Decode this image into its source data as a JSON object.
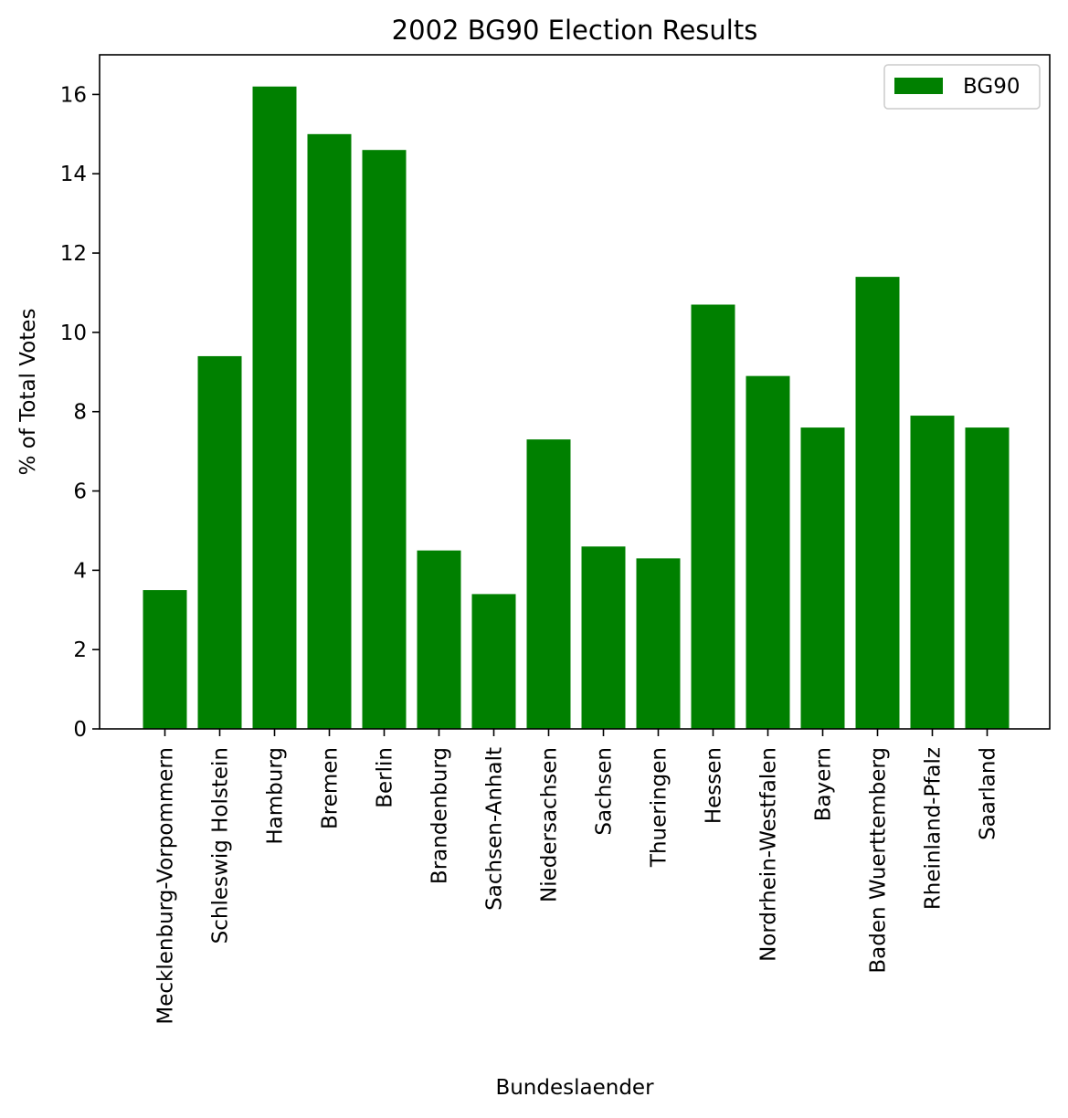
{
  "chart_data": {
    "type": "bar",
    "title": "2002 BG90 Election Results",
    "xlabel": "Bundeslaender",
    "ylabel": "% of Total Votes",
    "ylim": [
      0,
      17
    ],
    "yticks": [
      0,
      2,
      4,
      6,
      8,
      10,
      12,
      14,
      16
    ],
    "grid": false,
    "legend_position": "top-right",
    "categories": [
      "Mecklenburg-Vorpommern",
      "Schleswig Holstein",
      "Hamburg",
      "Bremen",
      "Berlin",
      "Brandenburg",
      "Sachsen-Anhalt",
      "Niedersachsen",
      "Sachsen",
      "Thueringen",
      "Hessen",
      "Nordrhein-Westfalen",
      "Bayern",
      "Baden Wuerttemberg",
      "Rheinland-Pfalz",
      "Saarland"
    ],
    "series": [
      {
        "name": "BG90",
        "color": "#008000",
        "values": [
          3.5,
          9.4,
          16.2,
          15.0,
          14.6,
          4.5,
          3.4,
          7.3,
          4.6,
          4.3,
          10.7,
          8.9,
          7.6,
          11.4,
          7.9,
          7.6
        ]
      }
    ]
  }
}
